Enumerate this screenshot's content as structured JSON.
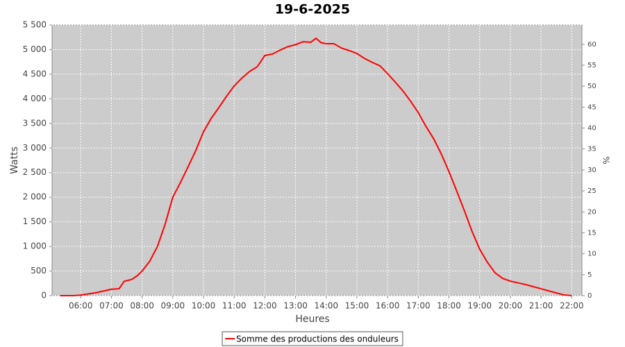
{
  "chart_data": {
    "type": "line",
    "title": "19-6-2025",
    "xlabel": "Heures",
    "ylabel": "Watts",
    "y2label": "%",
    "x": [
      "05:20",
      "05:45",
      "06:00",
      "06:30",
      "07:00",
      "07:15",
      "07:25",
      "07:40",
      "07:50",
      "08:00",
      "08:15",
      "08:30",
      "08:45",
      "09:00",
      "09:15",
      "09:30",
      "09:45",
      "10:00",
      "10:15",
      "10:30",
      "10:45",
      "11:00",
      "11:15",
      "11:30",
      "11:45",
      "12:00",
      "12:15",
      "12:30",
      "12:45",
      "13:00",
      "13:15",
      "13:30",
      "13:40",
      "13:50",
      "14:00",
      "14:15",
      "14:30",
      "14:45",
      "15:00",
      "15:15",
      "15:30",
      "15:45",
      "16:00",
      "16:15",
      "16:30",
      "16:45",
      "17:00",
      "17:15",
      "17:30",
      "17:45",
      "18:00",
      "18:15",
      "18:30",
      "18:45",
      "19:00",
      "19:15",
      "19:30",
      "19:45",
      "20:00",
      "20:30",
      "21:00",
      "21:30",
      "21:45",
      "22:00"
    ],
    "series": [
      {
        "name": "Somme des productions des onduleurs",
        "color": "#ff0000",
        "values": [
          0,
          0,
          10,
          60,
          130,
          140,
          290,
          330,
          400,
          500,
          700,
          1000,
          1450,
          2000,
          2300,
          2620,
          2950,
          3330,
          3600,
          3820,
          4050,
          4260,
          4420,
          4555,
          4650,
          4880,
          4910,
          4990,
          5060,
          5100,
          5160,
          5150,
          5230,
          5140,
          5120,
          5120,
          5030,
          4980,
          4920,
          4820,
          4740,
          4670,
          4510,
          4340,
          4160,
          3950,
          3720,
          3440,
          3190,
          2880,
          2520,
          2130,
          1730,
          1310,
          945,
          680,
          465,
          350,
          295,
          225,
          140,
          55,
          15,
          0
        ]
      }
    ],
    "xlim": [
      "05:04",
      "22:20"
    ],
    "xticks": [
      "06:00",
      "07:00",
      "08:00",
      "09:00",
      "10:00",
      "11:00",
      "12:00",
      "13:00",
      "14:00",
      "15:00",
      "16:00",
      "17:00",
      "18:00",
      "19:00",
      "20:00",
      "21:00",
      "22:00"
    ],
    "ylim": [
      0,
      5500
    ],
    "yticks": [
      0,
      500,
      {
        "value": 1000,
        "label": "1 000"
      },
      {
        "value": 1500,
        "label": "1 500"
      },
      {
        "value": 2000,
        "label": "2 000"
      },
      {
        "value": 2500,
        "label": "2 500"
      },
      {
        "value": 3000,
        "label": "3 000"
      },
      {
        "value": 3500,
        "label": "3 500"
      },
      {
        "value": 4000,
        "label": "4 000"
      },
      {
        "value": 4500,
        "label": "4 500"
      },
      {
        "value": 5000,
        "label": "5 000"
      },
      {
        "value": 5500,
        "label": "5 500"
      }
    ],
    "y2lim": [
      0,
      64.6
    ],
    "y2ticks": [
      0,
      5,
      10,
      15,
      20,
      25,
      30,
      35,
      40,
      45,
      50,
      55,
      60
    ],
    "grid": true,
    "legend": "bottom"
  }
}
